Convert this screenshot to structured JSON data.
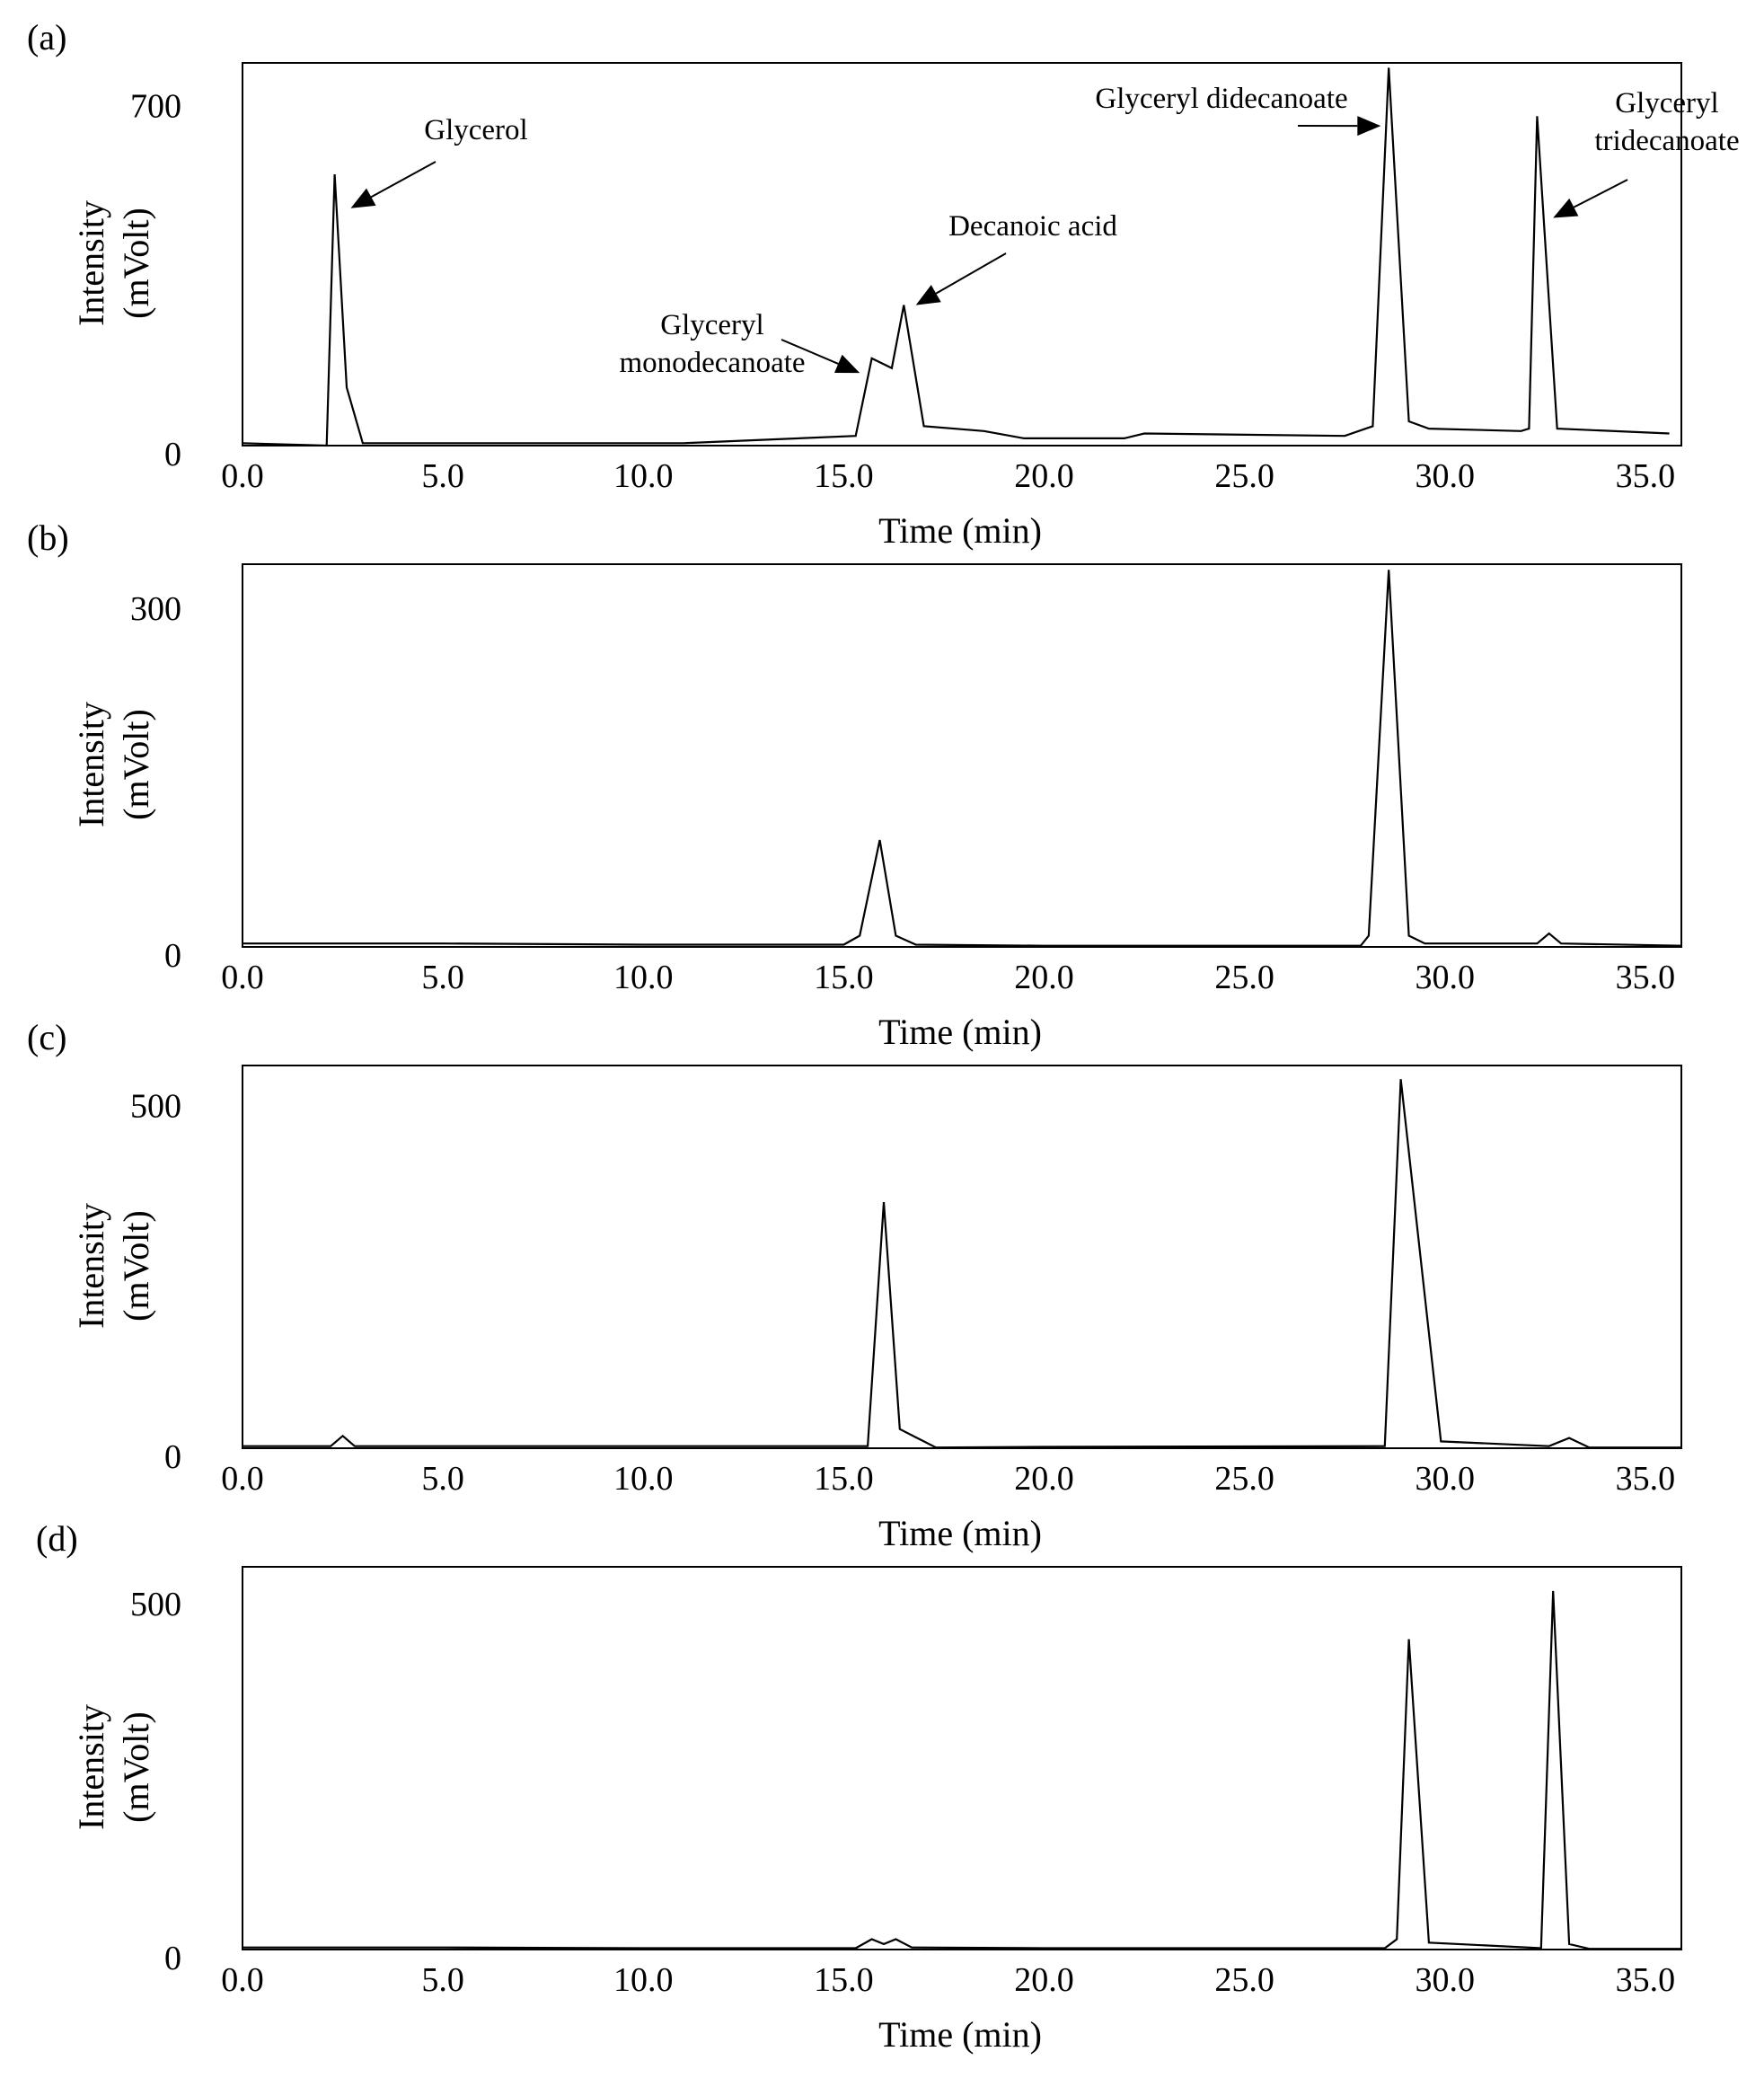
{
  "figure": {
    "line_color": "#000000",
    "background": "#ffffff"
  },
  "chart_data": [
    {
      "type": "line",
      "panel_label": "(a)",
      "xlabel": "Time (min)",
      "ylabel_line1": "Intensity",
      "ylabel_line2": "(mVolt)",
      "xlim": [
        0,
        35.9
      ],
      "ylim": [
        0,
        790
      ],
      "xticks": [
        "0.0",
        "5.0",
        "10.0",
        "15.0",
        "20.0",
        "25.0",
        "30.0",
        "35.0"
      ],
      "xtick_values": [
        0,
        5,
        10,
        15,
        20,
        25,
        30,
        35
      ],
      "yticks": [
        "0",
        "700"
      ],
      "ytick_values": [
        0,
        700
      ],
      "grid": false,
      "series": [
        {
          "x": [
            0,
            2.1,
            2.3,
            2.6,
            3.0,
            8.0,
            11.0,
            15.3,
            15.7,
            16.2,
            16.5,
            17.0,
            18.5,
            19.5,
            22.0,
            22.5,
            27.5,
            28.2,
            28.6,
            29.1,
            29.6,
            31.9,
            32.1,
            32.3,
            32.8,
            35.6
          ],
          "y": [
            5,
            0,
            560,
            120,
            5,
            5,
            5,
            20,
            180,
            160,
            290,
            40,
            30,
            15,
            15,
            25,
            20,
            40,
            780,
            50,
            35,
            30,
            35,
            680,
            35,
            25
          ]
        }
      ],
      "annotations": [
        {
          "lines": [
            "Glycerol"
          ],
          "points_to": [
            2.7,
            490
          ]
        },
        {
          "lines": [
            "Decanoic acid"
          ],
          "points_to": [
            16.8,
            290
          ]
        },
        {
          "lines": [
            "Glyceryl",
            "monodecanoate"
          ],
          "points_to": [
            15.4,
            150
          ]
        },
        {
          "lines": [
            "Glyceryl  didecanoate"
          ],
          "points_to": [
            28.4,
            660
          ]
        },
        {
          "lines": [
            "Glyceryl",
            "tridecanoate"
          ],
          "points_to": [
            32.7,
            470
          ]
        }
      ]
    },
    {
      "type": "line",
      "panel_label": "(b)",
      "xlabel": "Time (min)",
      "ylabel_line1": "Intensity",
      "ylabel_line2": "(mVolt)",
      "xlim": [
        0,
        35.9
      ],
      "ylim": [
        0,
        340
      ],
      "xticks": [
        "0.0",
        "5.0",
        "10.0",
        "15.0",
        "20.0",
        "25.0",
        "30.0",
        "35.0"
      ],
      "xtick_values": [
        0,
        5,
        10,
        15,
        20,
        25,
        30,
        35
      ],
      "yticks": [
        "0",
        "300"
      ],
      "ytick_values": [
        0,
        300
      ],
      "grid": false,
      "series": [
        {
          "x": [
            0,
            5,
            10,
            15.0,
            15.4,
            15.9,
            16.3,
            16.8,
            20,
            25,
            27.9,
            28.1,
            28.6,
            29.1,
            29.5,
            32.3,
            32.6,
            32.9,
            35.9
          ],
          "y": [
            3,
            3,
            2,
            2,
            10,
            95,
            10,
            2,
            1,
            1,
            1,
            10,
            335,
            10,
            3,
            3,
            12,
            3,
            1
          ]
        }
      ]
    },
    {
      "type": "line",
      "panel_label": "(c)",
      "xlabel": "Time (min)",
      "ylabel_line1": "Intensity",
      "ylabel_line2": "(mVolt)",
      "xlim": [
        0,
        35.9
      ],
      "ylim": [
        0,
        560
      ],
      "xticks": [
        "0.0",
        "5.0",
        "10.0",
        "15.0",
        "20.0",
        "25.0",
        "30.0",
        "35.0"
      ],
      "xtick_values": [
        0,
        5,
        10,
        15,
        20,
        25,
        30,
        35
      ],
      "yticks": [
        "0",
        "500"
      ],
      "ytick_values": [
        0,
        500
      ],
      "grid": false,
      "series": [
        {
          "x": [
            0,
            2.2,
            2.5,
            2.8,
            10,
            15.6,
            16.0,
            16.4,
            17.0,
            17.3,
            20,
            28.5,
            28.9,
            29.9,
            32.6,
            33.1,
            33.6,
            35.9
          ],
          "y": [
            3,
            3,
            18,
            3,
            3,
            3,
            360,
            28,
            10,
            1,
            2,
            3,
            540,
            10,
            3,
            15,
            1,
            1
          ]
        }
      ]
    },
    {
      "type": "line",
      "panel_label": "(d)",
      "xlabel": "Time (min)",
      "ylabel_line1": "Intensity",
      "ylabel_line2": "(mVolt)",
      "xlim": [
        0,
        35.9
      ],
      "ylim": [
        0,
        555
      ],
      "xticks": [
        "0.0",
        "5.0",
        "10.0",
        "15.0",
        "20.0",
        "25.0",
        "30.0",
        "35.0"
      ],
      "xtick_values": [
        0,
        5,
        10,
        15,
        20,
        25,
        30,
        35
      ],
      "yticks": [
        "0",
        "500"
      ],
      "ytick_values": [
        0,
        500
      ],
      "grid": false,
      "series": [
        {
          "x": [
            0,
            5,
            10,
            15.0,
            15.3,
            15.7,
            16.0,
            16.3,
            16.7,
            20,
            25,
            28.5,
            28.8,
            29.1,
            29.6,
            32.4,
            32.7,
            33.1,
            33.6,
            35.9
          ],
          "y": [
            3,
            3,
            2,
            2,
            2,
            15,
            8,
            15,
            3,
            2,
            2,
            2,
            15,
            450,
            10,
            2,
            520,
            8,
            1,
            1
          ]
        }
      ]
    }
  ]
}
